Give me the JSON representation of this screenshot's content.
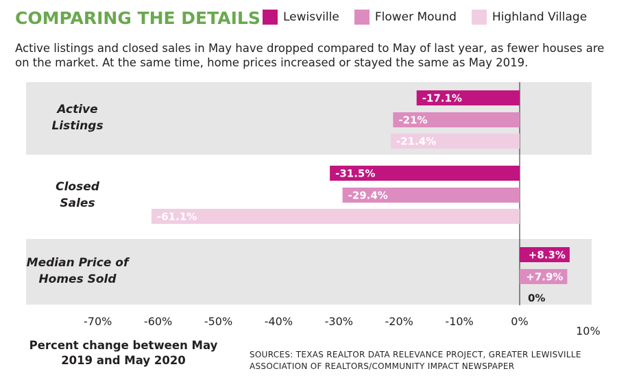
{
  "header": {
    "title": "COMPARING THE DETAILS",
    "subtitle": "Active listings and closed sales in May have dropped compared to May of last year, as fewer houses are on the market. At the same time, home prices increased or stayed the same as May 2019."
  },
  "legend": [
    {
      "label": "Lewisville",
      "color": "#c0157f"
    },
    {
      "label": "Flower Mound",
      "color": "#dd8cbf"
    },
    {
      "label": "Highland Village",
      "color": "#f1cde2"
    }
  ],
  "footer": {
    "sources": "SOURCES: TEXAS REALTOR DATA RELEVANCE PROJECT, GREATER LEWISVILLE ASSOCIATION OF REALTORS/COMMUNITY IMPACT NEWSPAPER"
  },
  "chart_data": {
    "type": "bar",
    "orientation": "horizontal",
    "title": "COMPARING THE DETAILS",
    "xlabel": "Percent change between May 2019 and May 2020",
    "xlim": [
      -70,
      10
    ],
    "ticks": [
      "-70%",
      "-60%",
      "-50%",
      "-40%",
      "-30%",
      "-20%",
      "-10%",
      "0%",
      "10%"
    ],
    "tick_values": [
      -70,
      -60,
      -50,
      -40,
      -30,
      -20,
      -10,
      0,
      10
    ],
    "categories": [
      {
        "label": [
          "Active",
          "Listings"
        ],
        "shaded": true
      },
      {
        "label": [
          "Closed",
          "Sales"
        ],
        "shaded": false
      },
      {
        "label": [
          "Median Price of",
          "Homes Sold"
        ],
        "shaded": true
      }
    ],
    "series": [
      {
        "name": "Lewisville",
        "color": "#c0157f",
        "values": [
          -17.1,
          -31.5,
          8.3
        ],
        "labels": [
          "-17.1%",
          "-31.5%",
          "+8.3%"
        ]
      },
      {
        "name": "Flower Mound",
        "color": "#dd8cbf",
        "values": [
          -21,
          -29.4,
          7.9
        ],
        "labels": [
          "-21%",
          "-29.4%",
          "+7.9%"
        ]
      },
      {
        "name": "Highland Village",
        "color": "#f1cde2",
        "values": [
          -21.4,
          -61.1,
          0
        ],
        "labels": [
          "-21.4%",
          "-61.1%",
          "0%"
        ]
      }
    ],
    "grid": false,
    "legend_position": "top-right"
  }
}
